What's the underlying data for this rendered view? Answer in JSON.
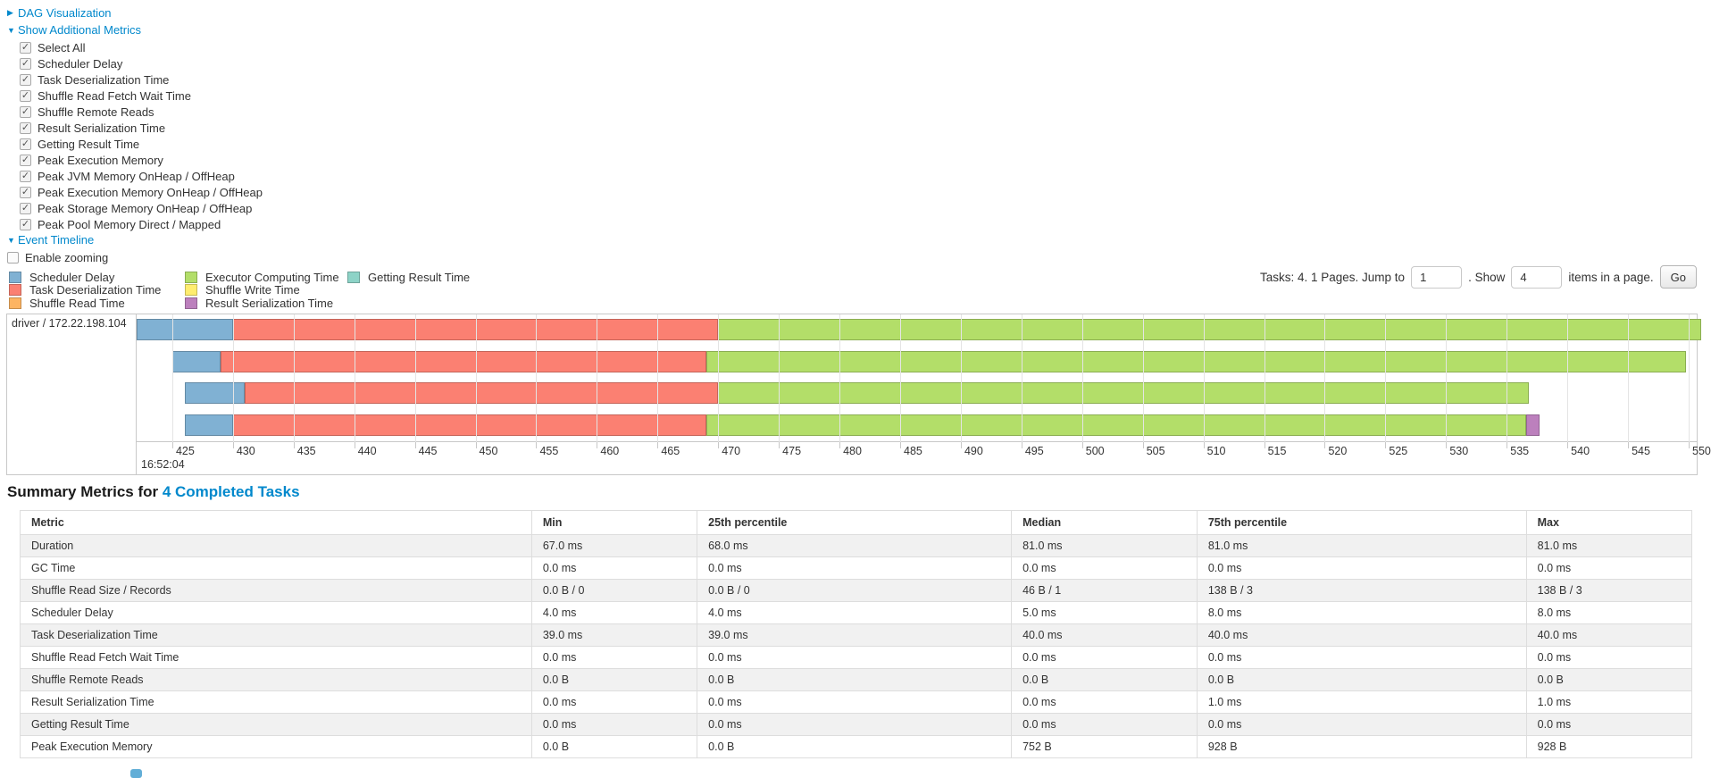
{
  "ui": {
    "arrow_collapsed": "▶",
    "arrow_expanded": "▼",
    "check_glyph": "✓"
  },
  "controls": {
    "dag_label": "DAG Visualization",
    "metrics_label": "Show Additional Metrics",
    "timeline_label": "Event Timeline",
    "enable_zooming_label": "Enable zooming",
    "metric_checkboxes": [
      "Select All",
      "Scheduler Delay",
      "Task Deserialization Time",
      "Shuffle Read Fetch Wait Time",
      "Shuffle Remote Reads",
      "Result Serialization Time",
      "Getting Result Time",
      "Peak Execution Memory",
      "Peak JVM Memory OnHeap / OffHeap",
      "Peak Execution Memory OnHeap / OffHeap",
      "Peak Storage Memory OnHeap / OffHeap",
      "Peak Pool Memory Direct / Mapped"
    ]
  },
  "pagination": {
    "tasks_text": "Tasks: 4. 1 Pages. Jump to",
    "jump_value": "1",
    "show_text": ". Show",
    "show_value": "4",
    "items_text": "items in a page.",
    "go_label": "Go"
  },
  "chart_data": {
    "type": "timeline",
    "group_label": "driver / 172.22.198.104",
    "time_label": "16:52:04",
    "axis": {
      "tick_start": 425,
      "tick_end": 550,
      "tick_step": 5,
      "t_min": 422.06,
      "t_max": 550.66
    },
    "series_meta": {
      "scheduler_delay": {
        "label": "Scheduler Delay",
        "color": "#80B1D3"
      },
      "task_deserialization": {
        "label": "Task Deserialization Time",
        "color": "#FB8072"
      },
      "shuffle_read": {
        "label": "Shuffle Read Time",
        "color": "#FDB462"
      },
      "executor_computing": {
        "label": "Executor Computing Time",
        "color": "#B3DE69"
      },
      "shuffle_write": {
        "label": "Shuffle Write Time",
        "color": "#FFED6F"
      },
      "result_serialization": {
        "label": "Result Serialization Time",
        "color": "#BC80BD"
      },
      "getting_result": {
        "label": "Getting Result Time",
        "color": "#8DD3C7"
      }
    },
    "legend_columns": [
      [
        "scheduler_delay",
        "task_deserialization",
        "shuffle_read"
      ],
      [
        "executor_computing",
        "shuffle_write",
        "result_serialization"
      ],
      [
        "getting_result"
      ]
    ],
    "tasks": [
      {
        "start": 422.06,
        "segments": [
          {
            "kind": "scheduler_delay",
            "end": 430.0
          },
          {
            "kind": "task_deserialization",
            "end": 470.0
          },
          {
            "kind": "executor_computing",
            "end": 551.0
          }
        ]
      },
      {
        "start": 425.0,
        "segments": [
          {
            "kind": "scheduler_delay",
            "end": 429.0
          },
          {
            "kind": "task_deserialization",
            "end": 469.0
          },
          {
            "kind": "executor_computing",
            "end": 549.8
          }
        ]
      },
      {
        "start": 426.0,
        "segments": [
          {
            "kind": "scheduler_delay",
            "end": 431.0
          },
          {
            "kind": "task_deserialization",
            "end": 470.0
          },
          {
            "kind": "executor_computing",
            "end": 536.8
          }
        ]
      },
      {
        "start": 426.0,
        "segments": [
          {
            "kind": "scheduler_delay",
            "end": 430.0
          },
          {
            "kind": "task_deserialization",
            "end": 469.0
          },
          {
            "kind": "executor_computing",
            "end": 536.6
          },
          {
            "kind": "result_serialization",
            "end": 537.7
          }
        ]
      }
    ]
  },
  "summary": {
    "title_prefix": "Summary Metrics for ",
    "title_link": "4 Completed Tasks",
    "columns": [
      "Metric",
      "Min",
      "25th percentile",
      "Median",
      "75th percentile",
      "Max"
    ],
    "col_widths": [
      "30.6%",
      "9.9%",
      "18.8%",
      "11.1%",
      "19.7%",
      "9.9%"
    ],
    "rows": [
      {
        "metric": "Duration",
        "values": [
          "67.0 ms",
          "68.0 ms",
          "81.0 ms",
          "81.0 ms",
          "81.0 ms"
        ]
      },
      {
        "metric": "GC Time",
        "values": [
          "0.0 ms",
          "0.0 ms",
          "0.0 ms",
          "0.0 ms",
          "0.0 ms"
        ]
      },
      {
        "metric": "Shuffle Read Size / Records",
        "values": [
          "0.0 B / 0",
          "0.0 B / 0",
          "46 B / 1",
          "138 B / 3",
          "138 B / 3"
        ]
      },
      {
        "metric": "Scheduler Delay",
        "values": [
          "4.0 ms",
          "4.0 ms",
          "5.0 ms",
          "8.0 ms",
          "8.0 ms"
        ]
      },
      {
        "metric": "Task Deserialization Time",
        "values": [
          "39.0 ms",
          "39.0 ms",
          "40.0 ms",
          "40.0 ms",
          "40.0 ms"
        ]
      },
      {
        "metric": "Shuffle Read Fetch Wait Time",
        "values": [
          "0.0 ms",
          "0.0 ms",
          "0.0 ms",
          "0.0 ms",
          "0.0 ms"
        ]
      },
      {
        "metric": "Shuffle Remote Reads",
        "values": [
          "0.0 B",
          "0.0 B",
          "0.0 B",
          "0.0 B",
          "0.0 B"
        ]
      },
      {
        "metric": "Result Serialization Time",
        "values": [
          "0.0 ms",
          "0.0 ms",
          "0.0 ms",
          "1.0 ms",
          "1.0 ms"
        ]
      },
      {
        "metric": "Getting Result Time",
        "values": [
          "0.0 ms",
          "0.0 ms",
          "0.0 ms",
          "0.0 ms",
          "0.0 ms"
        ]
      },
      {
        "metric": "Peak Execution Memory",
        "values": [
          "0.0 B",
          "0.0 B",
          "752 B",
          "928 B",
          "928 B"
        ]
      }
    ]
  }
}
